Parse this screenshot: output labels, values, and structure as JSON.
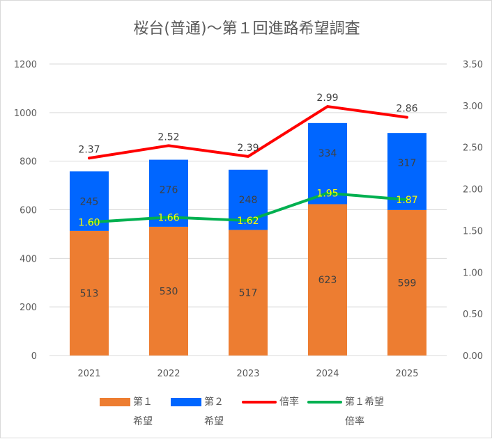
{
  "chart_data": {
    "type": "bar",
    "title": "桜台(普通)～第１回進路希望調査",
    "categories": [
      "2021",
      "2022",
      "2023",
      "2024",
      "2025"
    ],
    "series": [
      {
        "name": "第１希望",
        "kind": "stacked-bar",
        "axis": "left",
        "color": "#ed7d31",
        "values": [
          513,
          530,
          517,
          623,
          599
        ]
      },
      {
        "name": "第２希望",
        "kind": "stacked-bar",
        "axis": "left",
        "color": "#0066ff",
        "values": [
          245,
          276,
          248,
          334,
          317
        ]
      },
      {
        "name": "倍率",
        "kind": "line",
        "axis": "right",
        "color": "#ff0000",
        "values": [
          2.37,
          2.52,
          2.39,
          2.99,
          2.86
        ]
      },
      {
        "name": "第１希望倍率",
        "kind": "line",
        "axis": "right",
        "color": "#00b050",
        "values": [
          1.6,
          1.66,
          1.62,
          1.95,
          1.87
        ]
      }
    ],
    "y_left": {
      "lim": [
        0,
        1200
      ],
      "ticks": [
        "0",
        "200",
        "400",
        "600",
        "800",
        "1000",
        "1200"
      ]
    },
    "y_right": {
      "lim": [
        0,
        3.5
      ],
      "ticks": [
        "0.00",
        "0.50",
        "1.00",
        "1.50",
        "2.00",
        "2.50",
        "3.00",
        "3.50"
      ]
    },
    "grid": true,
    "legend_position": "bottom"
  },
  "legend": {
    "item1_line1": "第１",
    "item1_line2": "希望",
    "item2_line1": "第２",
    "item2_line2": "希望",
    "item3_line1": "倍率",
    "item4_line1": "第１希望",
    "item4_line2": "倍率"
  }
}
